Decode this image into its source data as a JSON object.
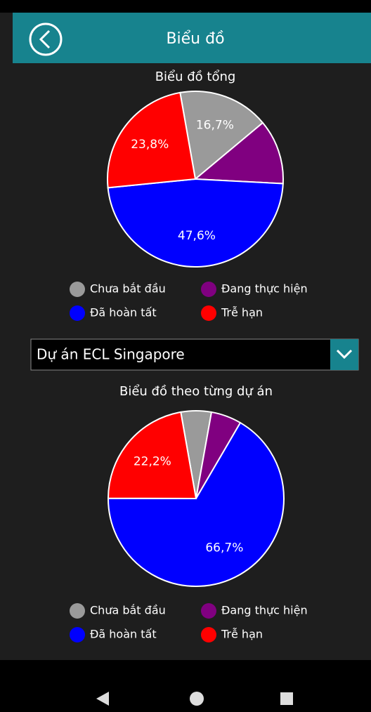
{
  "header": {
    "title": "Biểu đồ"
  },
  "charts": [
    {
      "type": "pie",
      "title": "Biểu đồ tổng",
      "categories": [
        "Chưa bắt đầu",
        "Đang thực hiện",
        "Đã hoàn tất",
        "Trễ hạn"
      ],
      "colors": [
        "#9a9a9a",
        "#800080",
        "#0000ff",
        "#ff0000"
      ],
      "values": [
        16.7,
        11.9,
        47.6,
        23.8
      ],
      "value_labels": [
        "16,7%",
        null,
        "47,6%",
        "23,8%"
      ]
    },
    {
      "type": "pie",
      "title": "Biểu đồ theo từng dự án",
      "categories": [
        "Chưa bắt đầu",
        "Đang thực hiện",
        "Đã hoàn tất",
        "Trễ hạn"
      ],
      "colors": [
        "#9a9a9a",
        "#800080",
        "#0000ff",
        "#ff0000"
      ],
      "values": [
        5.6,
        5.6,
        66.7,
        22.2
      ],
      "value_labels": [
        null,
        null,
        "66,7%",
        "22,2%"
      ]
    }
  ],
  "dropdown": {
    "selected": "Dự án ECL Singapore"
  }
}
